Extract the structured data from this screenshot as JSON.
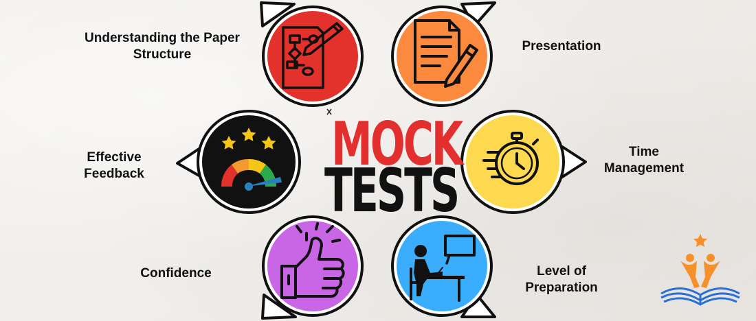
{
  "title": {
    "line1": "MOCK",
    "line2": "TESTS"
  },
  "colors": {
    "background": "#f1efec",
    "title_line1": "#e3302f",
    "title_line2": "#111111",
    "paper_structure": "#e3322c",
    "presentation": "#fb8a3f",
    "feedback": "#111111",
    "time_management": "#fdd94f",
    "confidence": "#c966e6",
    "preparation": "#3aaefc",
    "logo_orange": "#f5902b",
    "logo_blue": "#2a6fd6"
  },
  "items": [
    {
      "id": "paper_structure",
      "label_lines": [
        "Understanding the Paper",
        "Structure"
      ],
      "icon": "flowchart-pencil-icon"
    },
    {
      "id": "presentation",
      "label_lines": [
        "Presentation"
      ],
      "icon": "document-pencil-icon"
    },
    {
      "id": "feedback",
      "label_lines": [
        "Effective",
        "Feedback"
      ],
      "icon": "rating-gauge-icon"
    },
    {
      "id": "time_management",
      "label_lines": [
        "Time",
        "Management"
      ],
      "icon": "stopwatch-icon"
    },
    {
      "id": "confidence",
      "label_lines": [
        "Confidence"
      ],
      "icon": "thumbs-up-icon"
    },
    {
      "id": "preparation",
      "label_lines": [
        "Level of",
        "Preparation"
      ],
      "icon": "student-desk-icon"
    }
  ],
  "logo": {
    "icon": "book-people-star-logo"
  }
}
